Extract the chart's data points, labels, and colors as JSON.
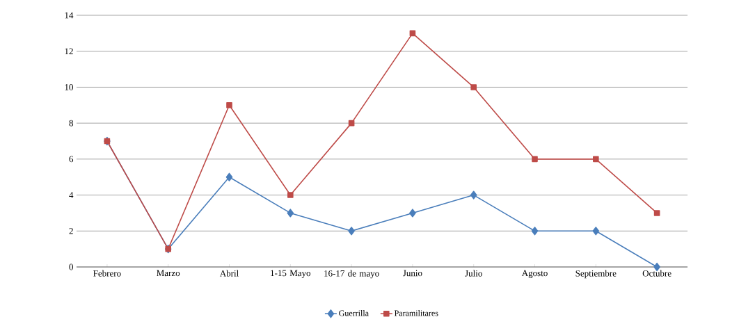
{
  "chart_data": {
    "type": "line",
    "categories": [
      "Febrero",
      "Marzo",
      "Abril",
      "1-15 Mayo",
      "16-17 de mayo",
      "Junio",
      "Julio",
      "Agosto",
      "Septiembre",
      "Octubre"
    ],
    "series": [
      {
        "name": "Guerrilla",
        "color": "#4a7ebb",
        "marker": "diamond",
        "values": [
          7,
          1,
          5,
          3,
          2,
          3,
          4,
          2,
          2,
          0
        ]
      },
      {
        "name": "Paramilitares",
        "color": "#be4b48",
        "marker": "square",
        "values": [
          7,
          1,
          9,
          4,
          8,
          13,
          10,
          6,
          6,
          3
        ]
      }
    ],
    "ylim": [
      0,
      14
    ],
    "yticks": [
      0,
      2,
      4,
      6,
      8,
      10,
      12,
      14
    ],
    "grid": "y",
    "legend": "bottom"
  }
}
